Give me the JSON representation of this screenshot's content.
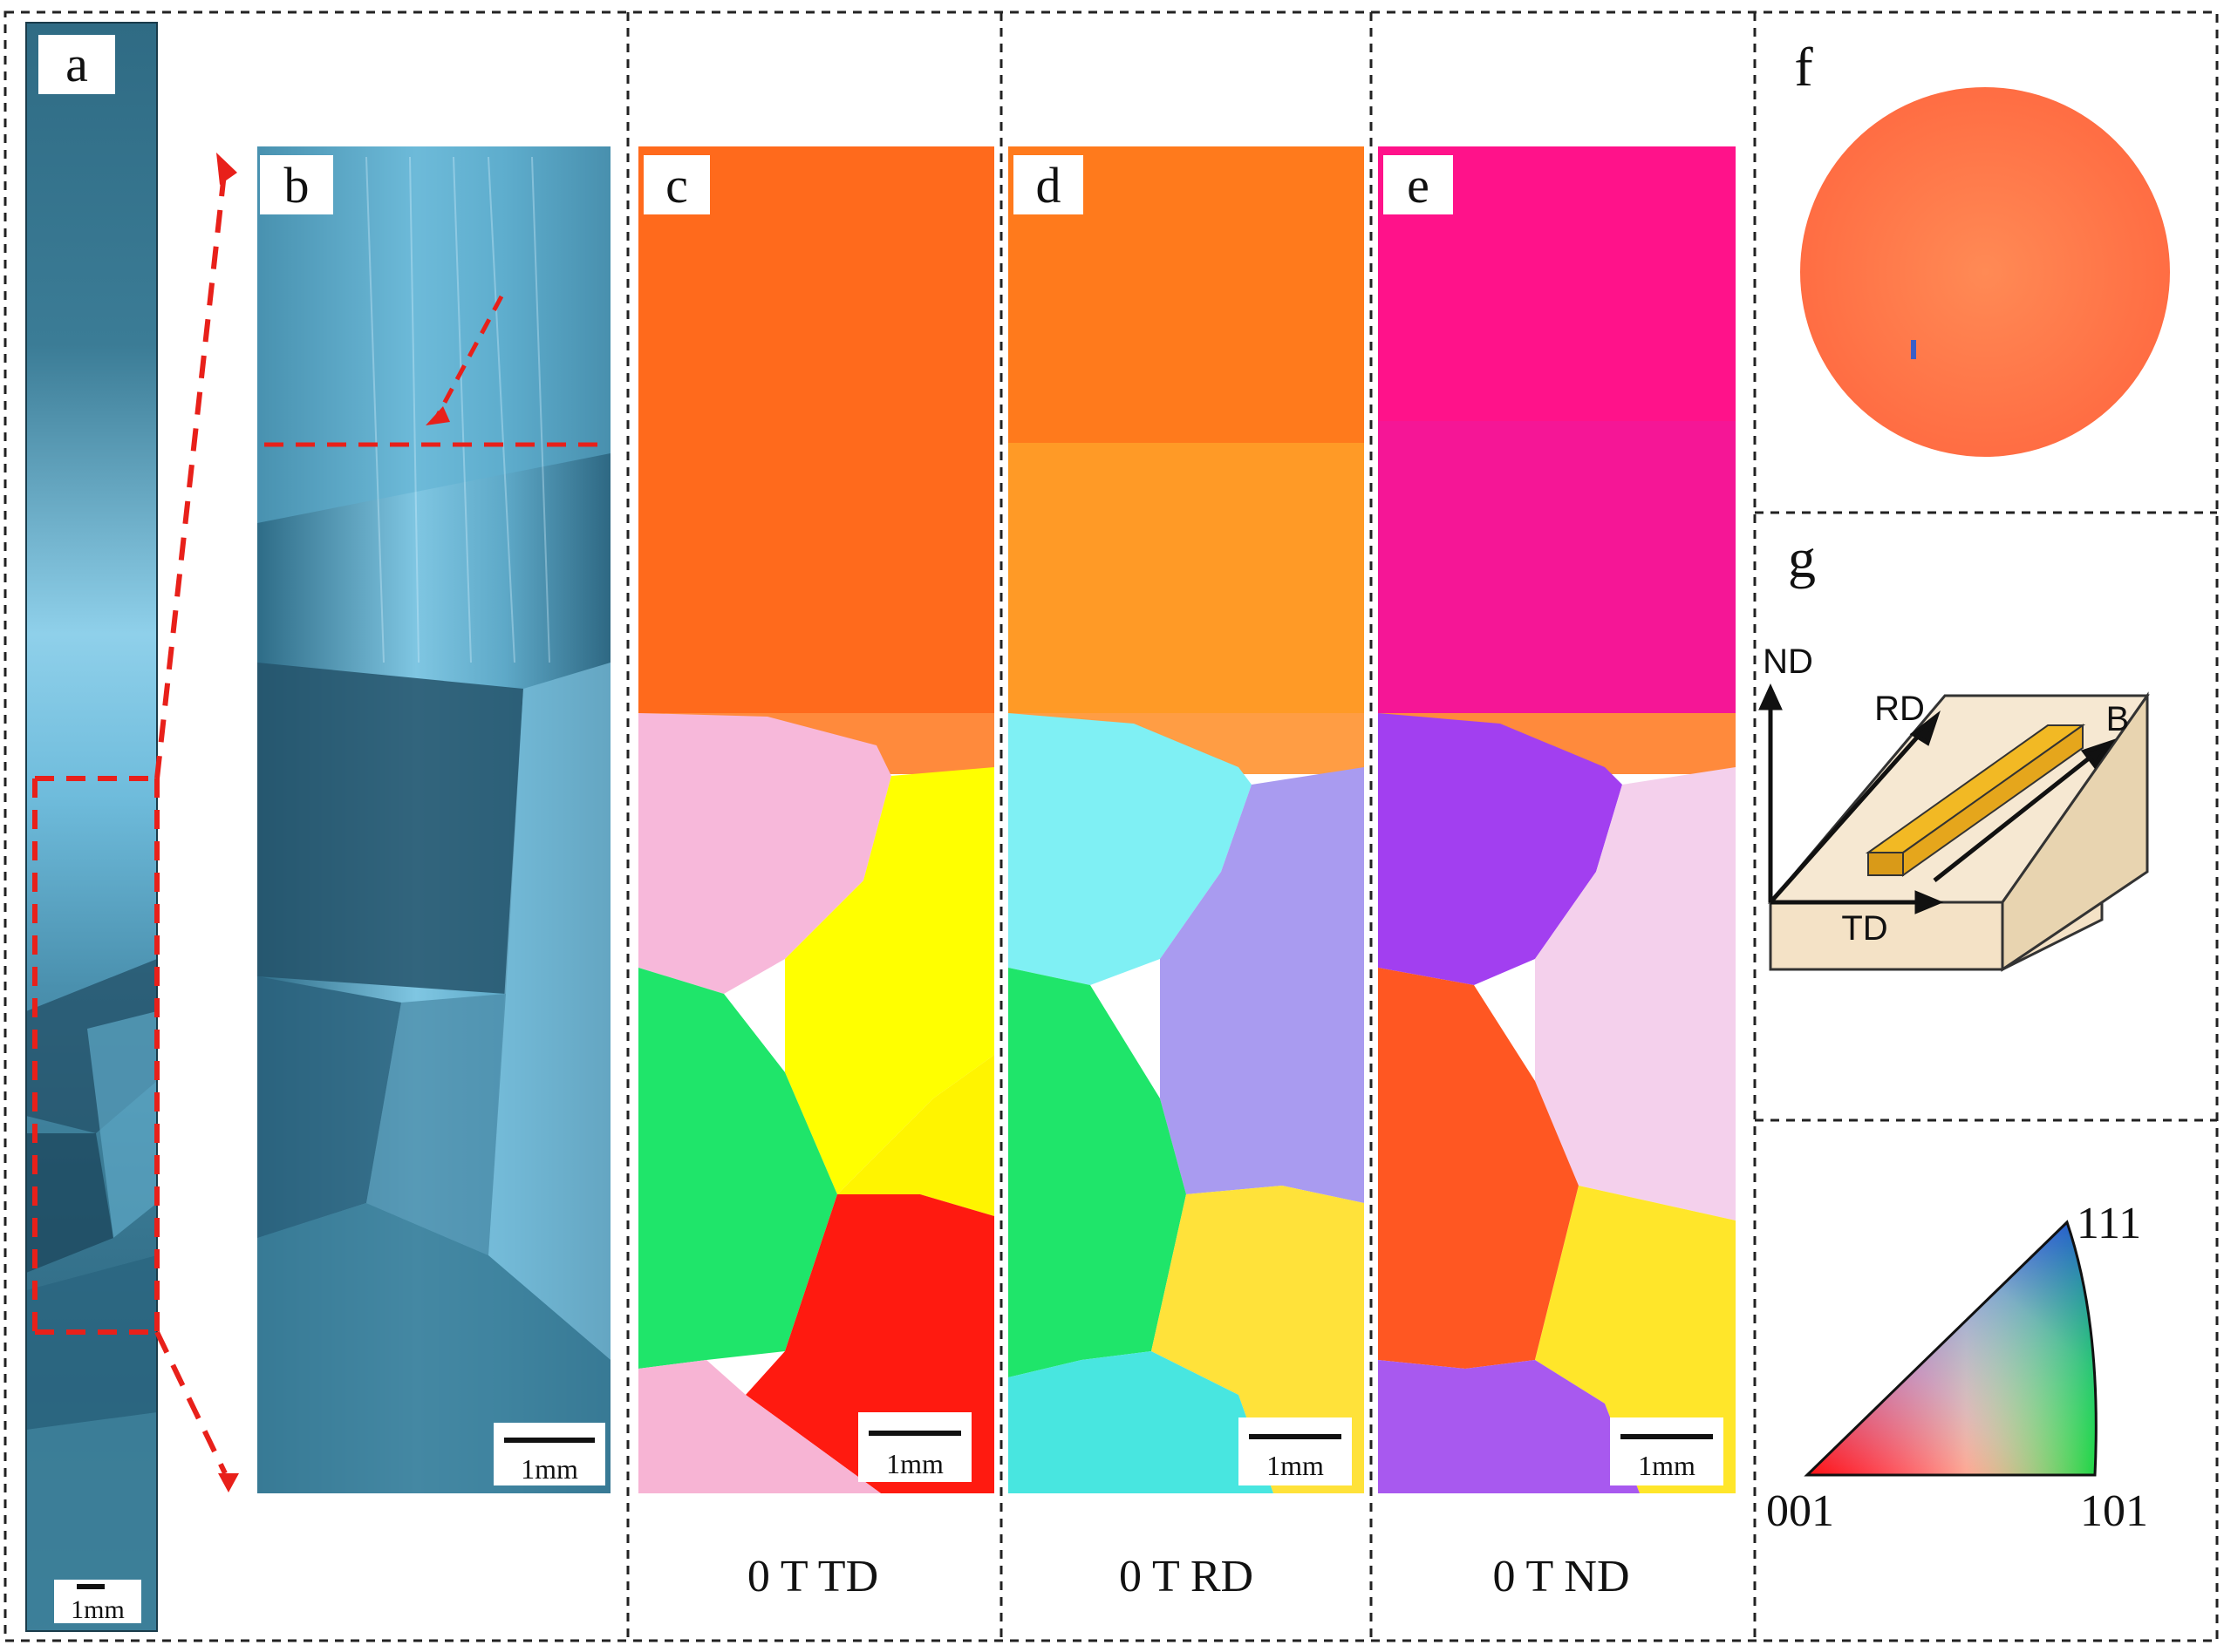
{
  "panel_labels": {
    "a": "a",
    "b": "b",
    "c": "c",
    "d": "d",
    "e": "e",
    "f": "f",
    "g": "g"
  },
  "scale_bars": {
    "a": "1mm",
    "b": "1mm",
    "c": "1mm",
    "d": "1mm",
    "e": "1mm"
  },
  "captions": {
    "c": "0 T   TD",
    "d": "0 T   RD",
    "e": "0 T   ND"
  },
  "schematic": {
    "nd": "ND",
    "rd": "RD",
    "td": "TD",
    "b": "B"
  },
  "ipf_key": {
    "corner_001": "001",
    "corner_101": "101",
    "corner_111": "111"
  },
  "colors": {
    "divider": "#222222",
    "highlight_dashes": "#e8201a",
    "optical_base": "#3c7f9a",
    "sample_block": "#f2c12a",
    "substrate": "#f4e2c6"
  }
}
